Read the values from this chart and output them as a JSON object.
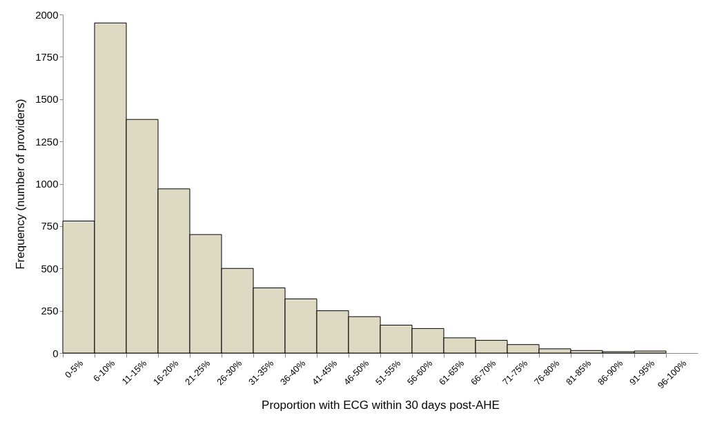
{
  "chart_data": {
    "type": "bar",
    "xlabel": "Proportion with ECG within 30 days post-AHE",
    "ylabel": "Frequency (number of providers)",
    "categories": [
      "0-5%",
      "6-10%",
      "11-15%",
      "16-20%",
      "21-25%",
      "26-30%",
      "31-35%",
      "36-40%",
      "41-45%",
      "46-50%",
      "51-55%",
      "56-60%",
      "61-65%",
      "66-70%",
      "71-75%",
      "76-80%",
      "81-85%",
      "86-90%",
      "91-95%",
      "96-100%"
    ],
    "values": [
      780,
      1950,
      1380,
      970,
      700,
      500,
      385,
      320,
      250,
      215,
      165,
      145,
      90,
      75,
      50,
      25,
      15,
      8,
      12,
      null
    ],
    "color": "#ddd9c3",
    "ylim": [
      0,
      2000
    ],
    "yticks": [
      0,
      250,
      500,
      750,
      1000,
      1250,
      1500,
      1750,
      2000
    ],
    "grid": false
  }
}
